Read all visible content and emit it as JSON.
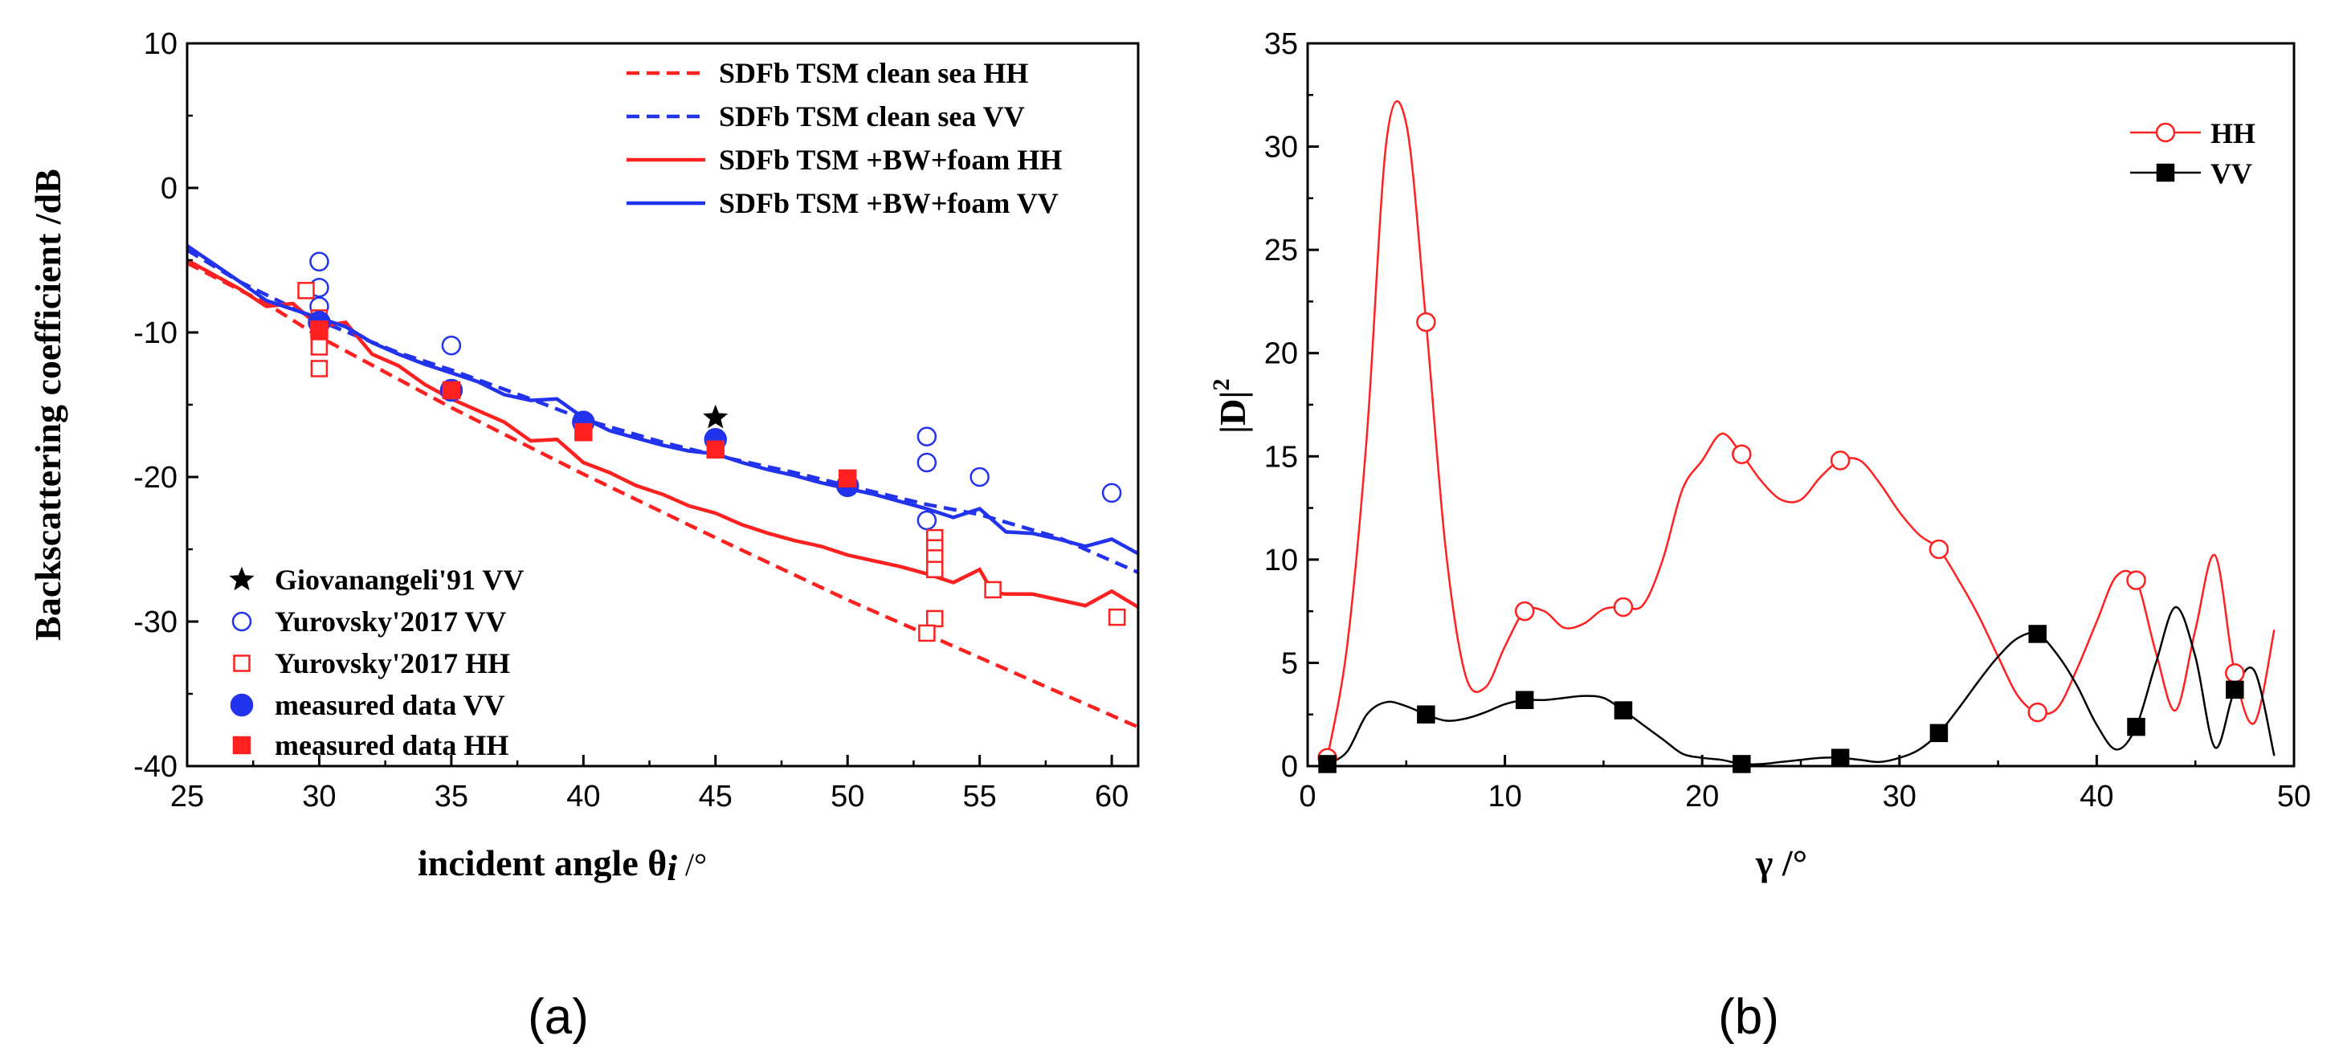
{
  "chart_data": [
    {
      "panel_label": "(a)",
      "type": "line",
      "xlabel": "incident angle θ",
      "xlabel_subscript": "i",
      "xlabel_unit": " /°",
      "ylabel": "Backscattering coefficient /dB",
      "xlim": [
        25,
        61
      ],
      "ylim": [
        -40,
        10
      ],
      "xticks": [
        25,
        30,
        35,
        40,
        45,
        50,
        55,
        60
      ],
      "yticks": [
        10,
        0,
        -10,
        -20,
        -30,
        -40
      ],
      "series": [
        {
          "name": "SDFb TSM clean sea HH",
          "color": "#ff2020",
          "style": "dashed",
          "points": [
            [
              25,
              -5.2
            ],
            [
              28,
              -8.0
            ],
            [
              30,
              -10.3
            ],
            [
              35,
              -15.2
            ],
            [
              40,
              -19.8
            ],
            [
              45,
              -24.2
            ],
            [
              50,
              -28.5
            ],
            [
              55,
              -32.5
            ],
            [
              61,
              -37.3
            ]
          ]
        },
        {
          "name": "SDFb TSM clean sea VV",
          "color": "#2233ee",
          "style": "dashed",
          "points": [
            [
              25,
              -4.3
            ],
            [
              27,
              -6.5
            ],
            [
              30,
              -9.2
            ],
            [
              33,
              -11.4
            ],
            [
              35,
              -12.6
            ],
            [
              38,
              -14.6
            ],
            [
              40,
              -16.0
            ],
            [
              43,
              -17.6
            ],
            [
              45,
              -18.5
            ],
            [
              48,
              -19.7
            ],
            [
              50,
              -20.6
            ],
            [
              53,
              -21.9
            ],
            [
              55,
              -22.6
            ],
            [
              58,
              -24.2
            ],
            [
              61,
              -26.6
            ]
          ]
        },
        {
          "name": "SDFb TSM +BW+foam HH",
          "color": "#ff2020",
          "style": "solid",
          "points": [
            [
              25,
              -5.0
            ],
            [
              27,
              -7.0
            ],
            [
              28,
              -8.2
            ],
            [
              29,
              -8.0
            ],
            [
              30,
              -9.6
            ],
            [
              31,
              -9.3
            ],
            [
              32,
              -11.5
            ],
            [
              33,
              -12.3
            ],
            [
              34,
              -13.6
            ],
            [
              35,
              -14.6
            ],
            [
              36,
              -15.4
            ],
            [
              37,
              -16.2
            ],
            [
              38,
              -17.5
            ],
            [
              39,
              -17.4
            ],
            [
              40,
              -19.0
            ],
            [
              41,
              -19.7
            ],
            [
              42,
              -20.6
            ],
            [
              43,
              -21.2
            ],
            [
              44,
              -22.0
            ],
            [
              45,
              -22.5
            ],
            [
              46,
              -23.3
            ],
            [
              47,
              -23.9
            ],
            [
              48,
              -24.4
            ],
            [
              49,
              -24.8
            ],
            [
              50,
              -25.4
            ],
            [
              51,
              -25.8
            ],
            [
              52,
              -26.2
            ],
            [
              53,
              -26.7
            ],
            [
              54,
              -27.3
            ],
            [
              55,
              -26.4
            ],
            [
              55.5,
              -28.0
            ],
            [
              56,
              -28.1
            ],
            [
              57,
              -28.1
            ],
            [
              58,
              -28.5
            ],
            [
              59,
              -28.9
            ],
            [
              60,
              -27.9
            ],
            [
              61,
              -29.0
            ]
          ]
        },
        {
          "name": "SDFb TSM +BW+foam VV",
          "color": "#2233ee",
          "style": "solid",
          "points": [
            [
              25,
              -4.0
            ],
            [
              27,
              -6.5
            ],
            [
              28,
              -7.8
            ],
            [
              29,
              -8.4
            ],
            [
              30,
              -9.0
            ],
            [
              31,
              -9.6
            ],
            [
              32,
              -10.7
            ],
            [
              33,
              -11.5
            ],
            [
              34,
              -12.2
            ],
            [
              35,
              -12.8
            ],
            [
              36,
              -13.4
            ],
            [
              37,
              -14.3
            ],
            [
              38,
              -14.7
            ],
            [
              39,
              -14.6
            ],
            [
              40,
              -15.9
            ],
            [
              41,
              -16.8
            ],
            [
              42,
              -17.3
            ],
            [
              43,
              -17.8
            ],
            [
              44,
              -18.2
            ],
            [
              45,
              -18.4
            ],
            [
              46,
              -19.0
            ],
            [
              47,
              -19.5
            ],
            [
              48,
              -19.9
            ],
            [
              49,
              -20.4
            ],
            [
              50,
              -20.8
            ],
            [
              51,
              -21.2
            ],
            [
              52,
              -21.7
            ],
            [
              53,
              -22.2
            ],
            [
              54,
              -22.8
            ],
            [
              55,
              -22.2
            ],
            [
              56,
              -23.8
            ],
            [
              57,
              -23.9
            ],
            [
              58,
              -24.3
            ],
            [
              59,
              -24.8
            ],
            [
              60,
              -24.3
            ],
            [
              61,
              -25.3
            ]
          ]
        }
      ],
      "markers": [
        {
          "name": "Giovanangeli'91 VV",
          "shape": "star",
          "color": "#000000",
          "fill": true,
          "points": [
            [
              45,
              -15.9
            ]
          ]
        },
        {
          "name": "Yurovsky'2017  VV",
          "shape": "circle",
          "color": "#2233ee",
          "fill": false,
          "points": [
            [
              30,
              -5.1
            ],
            [
              30,
              -6.9
            ],
            [
              30,
              -8.2
            ],
            [
              35,
              -10.9
            ],
            [
              53,
              -17.2
            ],
            [
              53,
              -19.0
            ],
            [
              55,
              -20.0
            ],
            [
              60,
              -21.1
            ],
            [
              53,
              -23.0
            ]
          ]
        },
        {
          "name": "Yurovsky'2017  HH",
          "shape": "square",
          "color": "#ff2020",
          "fill": false,
          "points": [
            [
              29.5,
              -7.1
            ],
            [
              30,
              -9.0
            ],
            [
              30,
              -10.4
            ],
            [
              30,
              -11.0
            ],
            [
              30,
              -12.5
            ],
            [
              53.3,
              -24.2
            ],
            [
              53.3,
              -24.9
            ],
            [
              53.3,
              -25.6
            ],
            [
              53.3,
              -26.4
            ],
            [
              53.3,
              -29.8
            ],
            [
              53,
              -30.8
            ],
            [
              55.5,
              -27.8
            ],
            [
              60.2,
              -29.7
            ]
          ]
        },
        {
          "name": "measured data  VV",
          "shape": "circle",
          "color": "#2233ee",
          "fill": true,
          "points": [
            [
              30,
              -9.3
            ],
            [
              35,
              -14.0
            ],
            [
              40,
              -16.2
            ],
            [
              45,
              -17.4
            ],
            [
              50,
              -20.6
            ]
          ]
        },
        {
          "name": "measured data  HH",
          "shape": "square",
          "color": "#ff2020",
          "fill": true,
          "points": [
            [
              30,
              -9.8
            ],
            [
              35,
              -14.0
            ],
            [
              40,
              -16.9
            ],
            [
              45,
              -18.1
            ],
            [
              50,
              -20.1
            ]
          ]
        }
      ]
    },
    {
      "panel_label": "(b)",
      "type": "line",
      "xlabel": "γ  /°",
      "ylabel": "|D|",
      "ylabel_superscript": "2",
      "xlim": [
        0,
        50
      ],
      "ylim": [
        0,
        35
      ],
      "xticks": [
        0,
        10,
        20,
        30,
        40,
        50
      ],
      "yticks": [
        0,
        5,
        10,
        15,
        20,
        25,
        30,
        35
      ],
      "series": [
        {
          "name": "HH",
          "color": "#ff2020",
          "marker": "circle-open",
          "points": [
            [
              1,
              0.4
            ],
            [
              2,
              5.8
            ],
            [
              3,
              16
            ],
            [
              4,
              30.3
            ],
            [
              5,
              31.1
            ],
            [
              6,
              21.5
            ],
            [
              7,
              10.5
            ],
            [
              8,
              4.4
            ],
            [
              9,
              3.8
            ],
            [
              10,
              5.8
            ],
            [
              11,
              7.5
            ],
            [
              12,
              7.5
            ],
            [
              13,
              6.7
            ],
            [
              14,
              6.9
            ],
            [
              15,
              7.6
            ],
            [
              16,
              7.7
            ],
            [
              17,
              7.8
            ],
            [
              18,
              10.0
            ],
            [
              19,
              13.4
            ],
            [
              20,
              14.8
            ],
            [
              21,
              16.1
            ],
            [
              22,
              15.1
            ],
            [
              23,
              13.8
            ],
            [
              24,
              12.9
            ],
            [
              25,
              12.9
            ],
            [
              26,
              14.0
            ],
            [
              27,
              14.8
            ],
            [
              28,
              14.8
            ],
            [
              29,
              13.7
            ],
            [
              30,
              12.3
            ],
            [
              31,
              11.2
            ],
            [
              32,
              10.5
            ],
            [
              33,
              9.0
            ],
            [
              34,
              7.3
            ],
            [
              35,
              5.3
            ],
            [
              36,
              3.4
            ],
            [
              37,
              2.6
            ],
            [
              38,
              2.8
            ],
            [
              39,
              4.7
            ],
            [
              40,
              7.0
            ],
            [
              41,
              9.2
            ],
            [
              42,
              9.0
            ],
            [
              43,
              5.5
            ],
            [
              44,
              2.7
            ],
            [
              45,
              6.6
            ],
            [
              46,
              10.2
            ],
            [
              47,
              4.5
            ],
            [
              48,
              2.1
            ],
            [
              49,
              6.6
            ]
          ],
          "marked_x": [
            1,
            6,
            11,
            16,
            22,
            27,
            32,
            37,
            42,
            47
          ]
        },
        {
          "name": "VV",
          "color": "#000000",
          "marker": "square-filled",
          "points": [
            [
              1,
              0.1
            ],
            [
              2,
              0.7
            ],
            [
              3,
              2.5
            ],
            [
              4,
              3.1
            ],
            [
              5,
              2.9
            ],
            [
              6,
              2.5
            ],
            [
              7,
              2.2
            ],
            [
              8,
              2.3
            ],
            [
              9,
              2.6
            ],
            [
              10,
              3.0
            ],
            [
              11,
              3.2
            ],
            [
              12,
              3.2
            ],
            [
              13,
              3.3
            ],
            [
              14,
              3.4
            ],
            [
              15,
              3.3
            ],
            [
              16,
              2.7
            ],
            [
              17,
              2.0
            ],
            [
              18,
              1.3
            ],
            [
              19,
              0.6
            ],
            [
              20,
              0.4
            ],
            [
              21,
              0.3
            ],
            [
              22,
              0.1
            ],
            [
              23,
              0.1
            ],
            [
              24,
              0.2
            ],
            [
              25,
              0.3
            ],
            [
              26,
              0.4
            ],
            [
              27,
              0.4
            ],
            [
              28,
              0.3
            ],
            [
              29,
              0.2
            ],
            [
              30,
              0.4
            ],
            [
              31,
              0.8
            ],
            [
              32,
              1.6
            ],
            [
              33,
              2.8
            ],
            [
              34,
              4.1
            ],
            [
              35,
              5.3
            ],
            [
              36,
              6.2
            ],
            [
              37,
              6.4
            ],
            [
              38,
              5.4
            ],
            [
              39,
              3.9
            ],
            [
              40,
              2.0
            ],
            [
              41,
              0.8
            ],
            [
              42,
              1.9
            ],
            [
              43,
              5.0
            ],
            [
              44,
              7.7
            ],
            [
              45,
              5.3
            ],
            [
              46,
              0.9
            ],
            [
              47,
              3.7
            ],
            [
              48,
              4.6
            ],
            [
              49,
              0.5
            ]
          ],
          "marked_x": [
            1,
            6,
            11,
            16,
            22,
            27,
            32,
            37,
            42,
            47
          ]
        }
      ]
    }
  ]
}
